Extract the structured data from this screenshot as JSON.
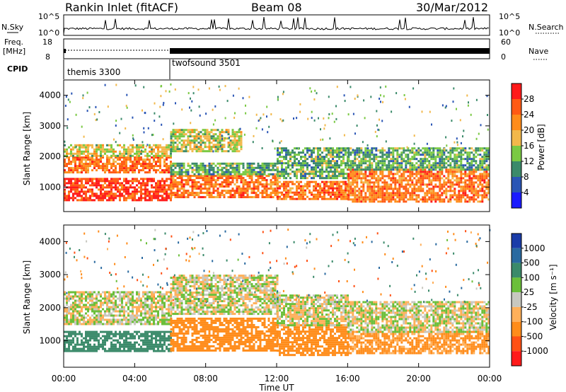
{
  "header": {
    "station": "Rankin Inlet (fitACF)",
    "beam": "Beam 08",
    "date": "30/Mar/2012"
  },
  "top_panel": {
    "nsky_label": "N.Sky",
    "nsearch_label": "N.Search",
    "nsky_ticks": [
      "10^5",
      "10^0"
    ],
    "nsearch_ticks": [
      "10^5",
      "10^0"
    ]
  },
  "freq_panel": {
    "freq_label_line1": "Freq.",
    "freq_label_line2": "[MHz]",
    "nave_label": "Nave",
    "freq_ticks": [
      "18",
      "8"
    ],
    "nave_ticks": [
      "60",
      "0"
    ]
  },
  "cpid_panel": {
    "label": "CPID",
    "programs": [
      {
        "name": "themis 3300",
        "start": "00:00",
        "end": "06:00"
      },
      {
        "name": "twofsound 3501",
        "start": "06:00",
        "end": "24:00"
      }
    ]
  },
  "x_axis": {
    "label": "Time UT",
    "ticks": [
      "00:00",
      "04:00",
      "08:00",
      "12:00",
      "16:00",
      "20:00",
      "00:00"
    ]
  },
  "power_panel": {
    "ylabel": "Slant Range [km]",
    "yticks": [
      "4000",
      "3000",
      "2000",
      "1000"
    ],
    "colorbar_label": "Power [dB]",
    "colorbar_ticks": [
      "28",
      "24",
      "20",
      "16",
      "12",
      "8",
      "4"
    ],
    "colors": [
      "#1a1aff",
      "#2a55b5",
      "#3b8a6a",
      "#7ac943",
      "#f2b84b",
      "#ff8c1a",
      "#ff5a14",
      "#ff1a1a"
    ]
  },
  "velocity_panel": {
    "ylabel": "Slant Range [km]",
    "yticks": [
      "4000",
      "3000",
      "2000",
      "1000"
    ],
    "colorbar_label": "Velocity [m s⁻¹]",
    "colorbar_ticks": [
      "1000",
      "500",
      "100",
      "25",
      "-25",
      "-100",
      "-500",
      "-1000"
    ],
    "colors": [
      "#1a3ca8",
      "#2a6aa0",
      "#3b8a6a",
      "#6bbf3a",
      "#c8c8c0",
      "#ffb05a",
      "#ff8c1a",
      "#ff5014",
      "#ff1a1a"
    ]
  },
  "chart_data": {
    "type": "heatmap",
    "title": "Rankin Inlet (fitACF)",
    "xlabel": "Time UT",
    "ylabel": "Slant Range [km]",
    "xlim": [
      "00:00",
      "24:00"
    ],
    "ylim": [
      200,
      4500
    ],
    "panels": [
      {
        "name": "Power",
        "unit": "dB",
        "colorbar": [
          4,
          8,
          12,
          16,
          20,
          24,
          28
        ],
        "bands": [
          {
            "t0": 0,
            "t1": 6,
            "r0": 600,
            "r1": 1300,
            "value": 28
          },
          {
            "t0": 0,
            "t1": 6,
            "r0": 1500,
            "r1": 2000,
            "value": 24
          },
          {
            "t0": 0,
            "t1": 6,
            "r0": 2000,
            "r1": 2400,
            "value": 16
          },
          {
            "t0": 6,
            "t1": 12,
            "r0": 700,
            "r1": 1400,
            "value": 24
          },
          {
            "t0": 6,
            "t1": 12,
            "r0": 1400,
            "r1": 1800,
            "value": 12
          },
          {
            "t0": 6,
            "t1": 10,
            "r0": 2200,
            "r1": 2900,
            "value": 16
          },
          {
            "t0": 12,
            "t1": 16,
            "r0": 600,
            "r1": 1200,
            "value": 24
          },
          {
            "t0": 12,
            "t1": 16,
            "r0": 1300,
            "r1": 2300,
            "value": 12
          },
          {
            "t0": 16,
            "t1": 24,
            "r0": 500,
            "r1": 1600,
            "value": 24
          },
          {
            "t0": 16,
            "t1": 24,
            "r0": 1600,
            "r1": 2300,
            "value": 12
          }
        ]
      },
      {
        "name": "Velocity",
        "unit": "m s^-1",
        "colorbar": [
          -1000,
          -500,
          -100,
          -25,
          25,
          100,
          500,
          1000
        ],
        "bands": [
          {
            "t0": 0,
            "t1": 6,
            "r0": 700,
            "r1": 1300,
            "value": 300
          },
          {
            "t0": 0,
            "t1": 6,
            "r0": 1500,
            "r1": 2500,
            "value": 0
          },
          {
            "t0": 6,
            "t1": 12,
            "r0": 700,
            "r1": 1700,
            "value": -300
          },
          {
            "t0": 6,
            "t1": 12,
            "r0": 1800,
            "r1": 3000,
            "value": 0
          },
          {
            "t0": 12,
            "t1": 16,
            "r0": 600,
            "r1": 1500,
            "value": -200
          },
          {
            "t0": 12,
            "t1": 16,
            "r0": 1500,
            "r1": 2400,
            "value": 0
          },
          {
            "t0": 16,
            "t1": 24,
            "r0": 600,
            "r1": 1300,
            "value": -150
          },
          {
            "t0": 16,
            "t1": 24,
            "r0": 1300,
            "r1": 2200,
            "value": 0
          }
        ]
      }
    ]
  }
}
